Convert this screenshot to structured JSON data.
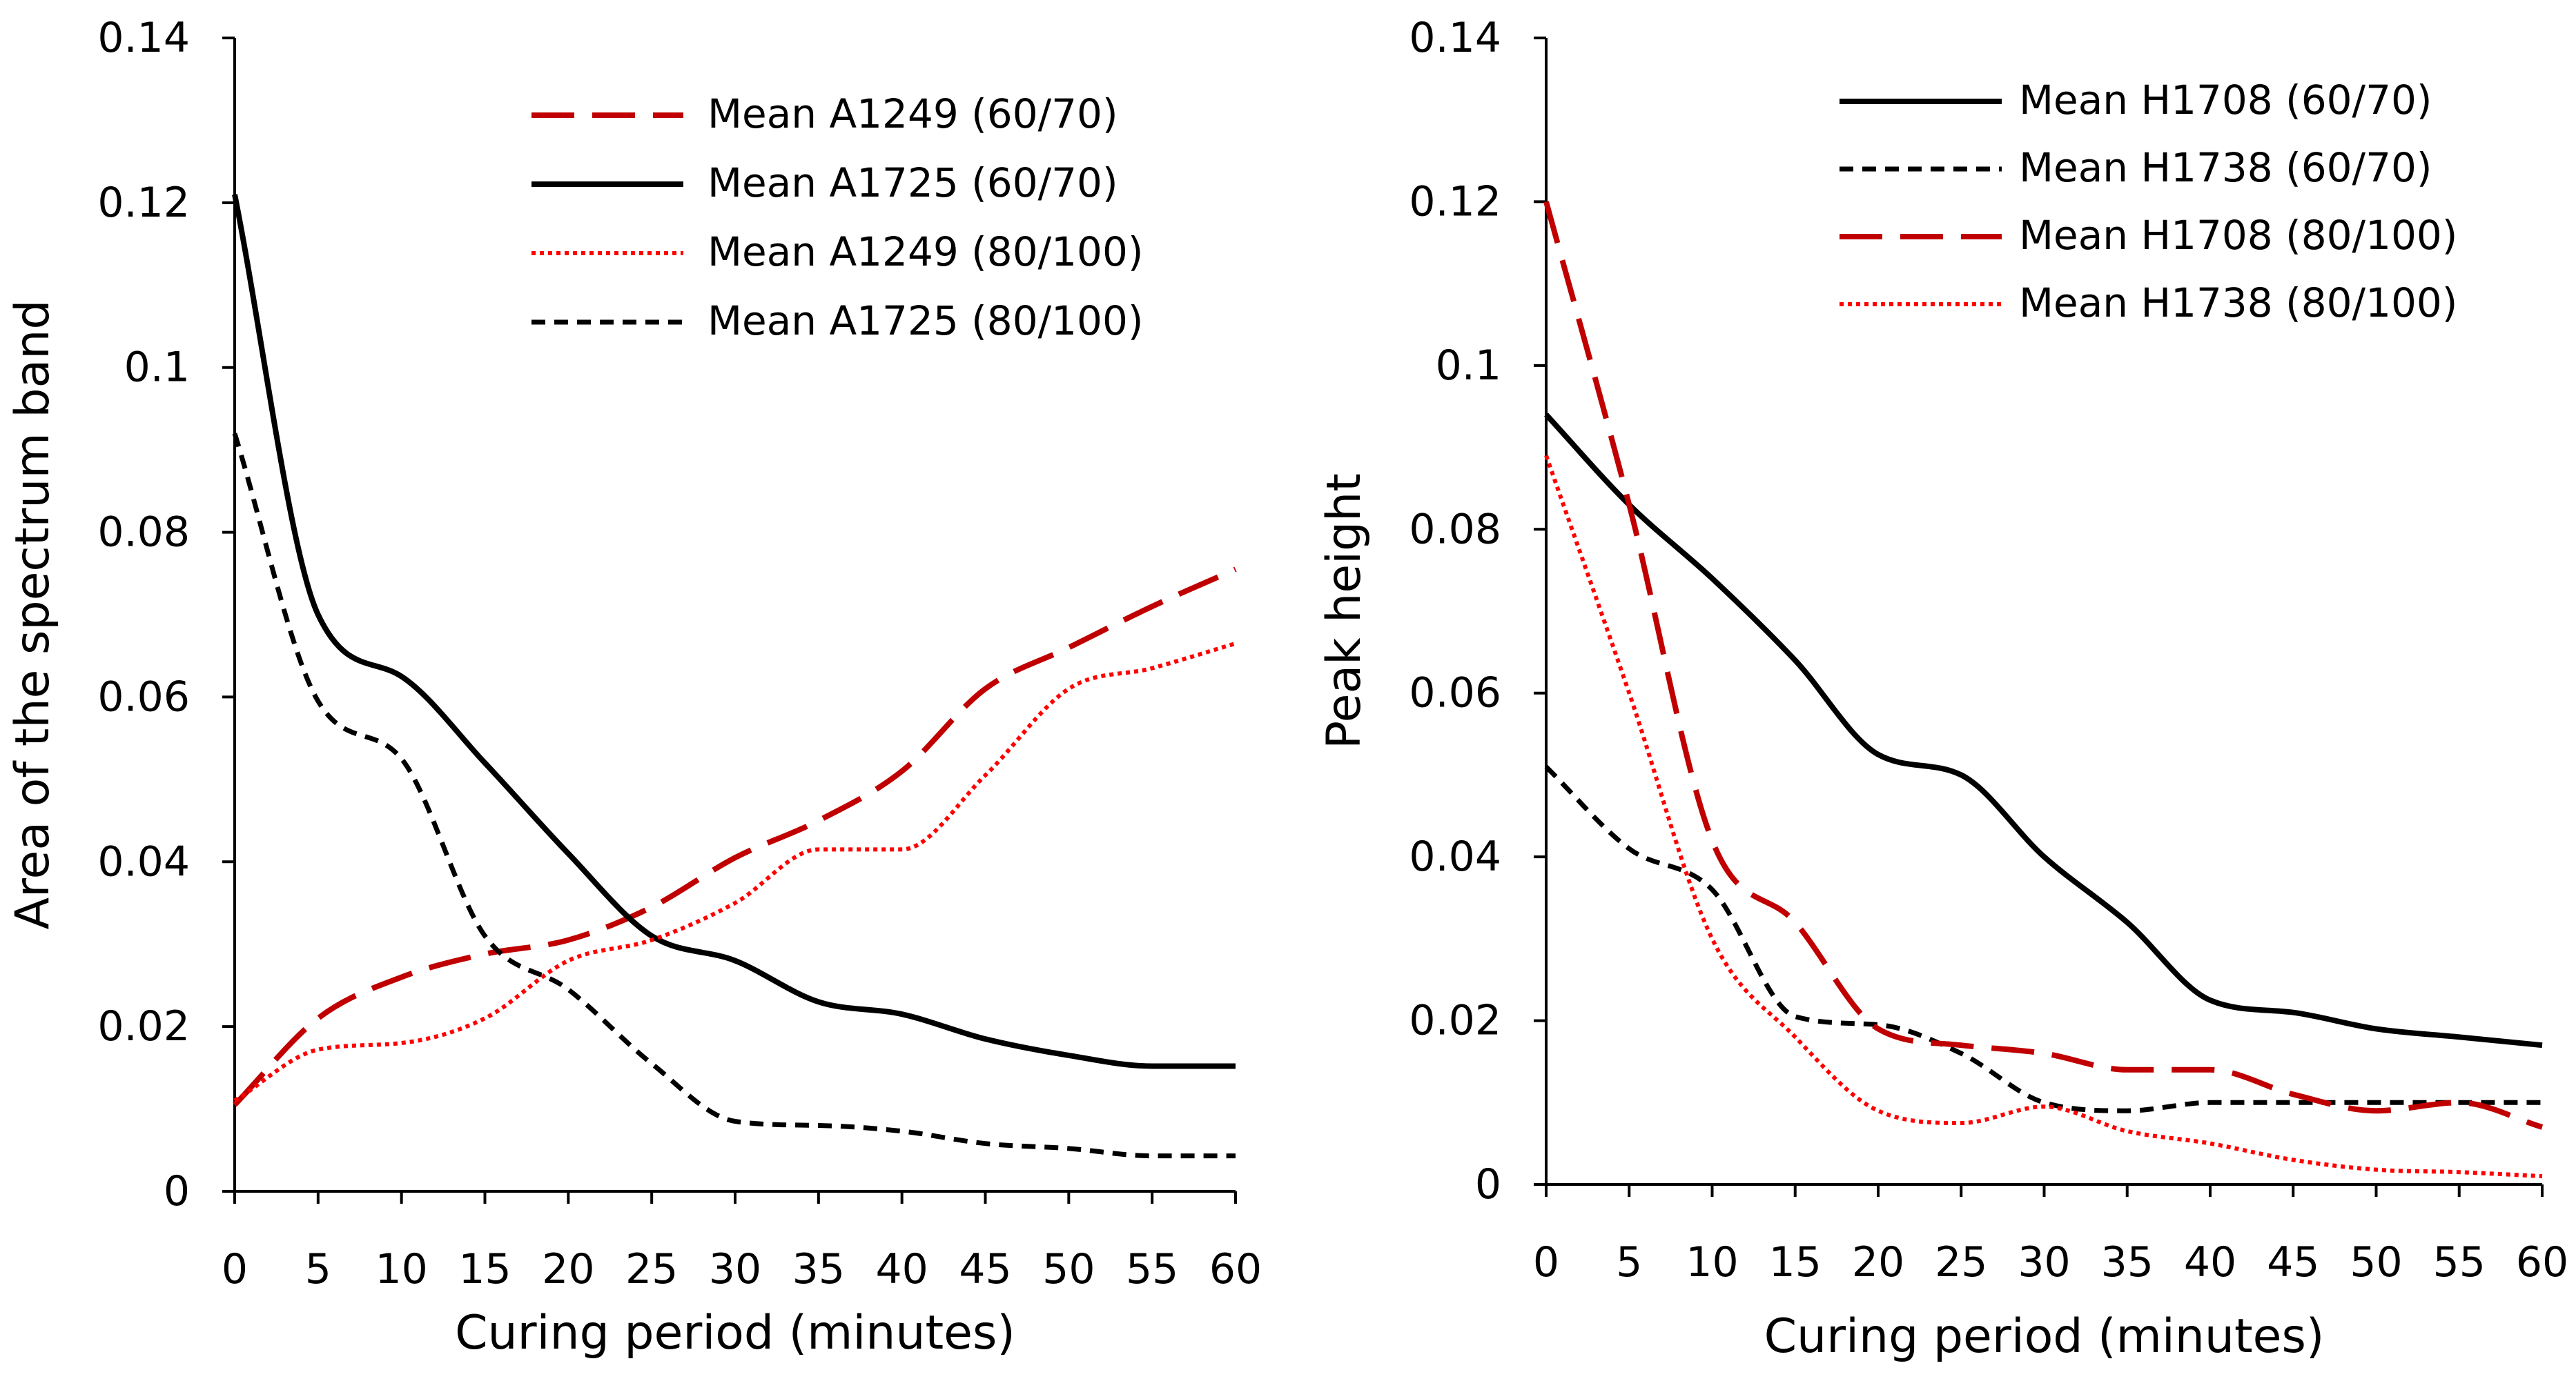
{
  "chart_data": [
    {
      "type": "line",
      "title": "",
      "xlabel": "Curing period (minutes)",
      "ylabel": "Area of the spectrum band",
      "xlim": [
        0,
        60
      ],
      "ylim": [
        0,
        0.14
      ],
      "x_ticks": [
        "0",
        "5",
        "10",
        "15",
        "20",
        "25",
        "30",
        "35",
        "40",
        "45",
        "50",
        "55",
        "60"
      ],
      "y_ticks": [
        "0",
        "0.02",
        "0.04",
        "0.06",
        "0.08",
        "0.1",
        "0.12",
        "0.14"
      ],
      "legend_position": "top-right",
      "x": [
        0,
        5,
        10,
        15,
        20,
        25,
        30,
        35,
        40,
        45,
        50,
        55,
        60
      ],
      "series": [
        {
          "name": "Mean A1249 (60/70)",
          "color": "#c00000",
          "style": "long-dash",
          "values": [
            0.0105,
            0.021,
            0.026,
            0.0288,
            0.0305,
            0.0345,
            0.0405,
            0.045,
            0.051,
            0.061,
            0.066,
            0.071,
            0.0755
          ]
        },
        {
          "name": "Mean A1725 (60/70)",
          "color": "#000000",
          "style": "solid",
          "values": [
            0.121,
            0.07,
            0.0625,
            0.052,
            0.041,
            0.031,
            0.028,
            0.023,
            0.0215,
            0.0185,
            0.0165,
            0.0152,
            0.0152
          ]
        },
        {
          "name": "Mean A1249 (80/100)",
          "color": "#ff0000",
          "style": "dotted",
          "values": [
            0.011,
            0.0172,
            0.018,
            0.021,
            0.028,
            0.0305,
            0.035,
            0.0415,
            0.0415,
            0.0505,
            0.061,
            0.0635,
            0.0665
          ]
        },
        {
          "name": "Mean A1725 (80/100)",
          "color": "#000000",
          "style": "short-dash",
          "values": [
            0.092,
            0.0595,
            0.0525,
            0.031,
            0.0245,
            0.0155,
            0.0085,
            0.008,
            0.0073,
            0.0058,
            0.0052,
            0.0043,
            0.0043
          ]
        }
      ]
    },
    {
      "type": "line",
      "title": "",
      "xlabel": "Curing period (minutes)",
      "ylabel": "Peak height",
      "xlim": [
        0,
        60
      ],
      "ylim": [
        0,
        0.14
      ],
      "x_ticks": [
        "0",
        "5",
        "10",
        "15",
        "20",
        "25",
        "30",
        "35",
        "40",
        "45",
        "50",
        "55",
        "60"
      ],
      "y_ticks": [
        "0",
        "0.02",
        "0.04",
        "0.06",
        "0.08",
        "0.1",
        "0.12",
        "0.14"
      ],
      "legend_position": "top-right",
      "x": [
        0,
        5,
        10,
        15,
        20,
        25,
        30,
        35,
        40,
        45,
        50,
        55,
        60
      ],
      "series": [
        {
          "name": "Mean H1708 (60/70)",
          "color": "#000000",
          "style": "solid",
          "values": [
            0.094,
            0.083,
            0.074,
            0.064,
            0.0525,
            0.05,
            0.04,
            0.032,
            0.0225,
            0.021,
            0.019,
            0.018,
            0.017
          ]
        },
        {
          "name": "Mean H1738 (60/70)",
          "color": "#000000",
          "style": "short-dash",
          "values": [
            0.051,
            0.041,
            0.036,
            0.0205,
            0.0195,
            0.016,
            0.01,
            0.009,
            0.01,
            0.01,
            0.01,
            0.01,
            0.01
          ]
        },
        {
          "name": "Mean H1708 (80/100)",
          "color": "#c00000",
          "style": "long-dash",
          "values": [
            0.12,
            0.083,
            0.042,
            0.032,
            0.019,
            0.017,
            0.016,
            0.014,
            0.014,
            0.011,
            0.009,
            0.01,
            0.007
          ]
        },
        {
          "name": "Mean H1738 (80/100)",
          "color": "#ff0000",
          "style": "dotted",
          "values": [
            0.089,
            0.06,
            0.03,
            0.018,
            0.009,
            0.0075,
            0.0095,
            0.0065,
            0.005,
            0.003,
            0.0018,
            0.0015,
            0.001
          ]
        }
      ]
    }
  ]
}
